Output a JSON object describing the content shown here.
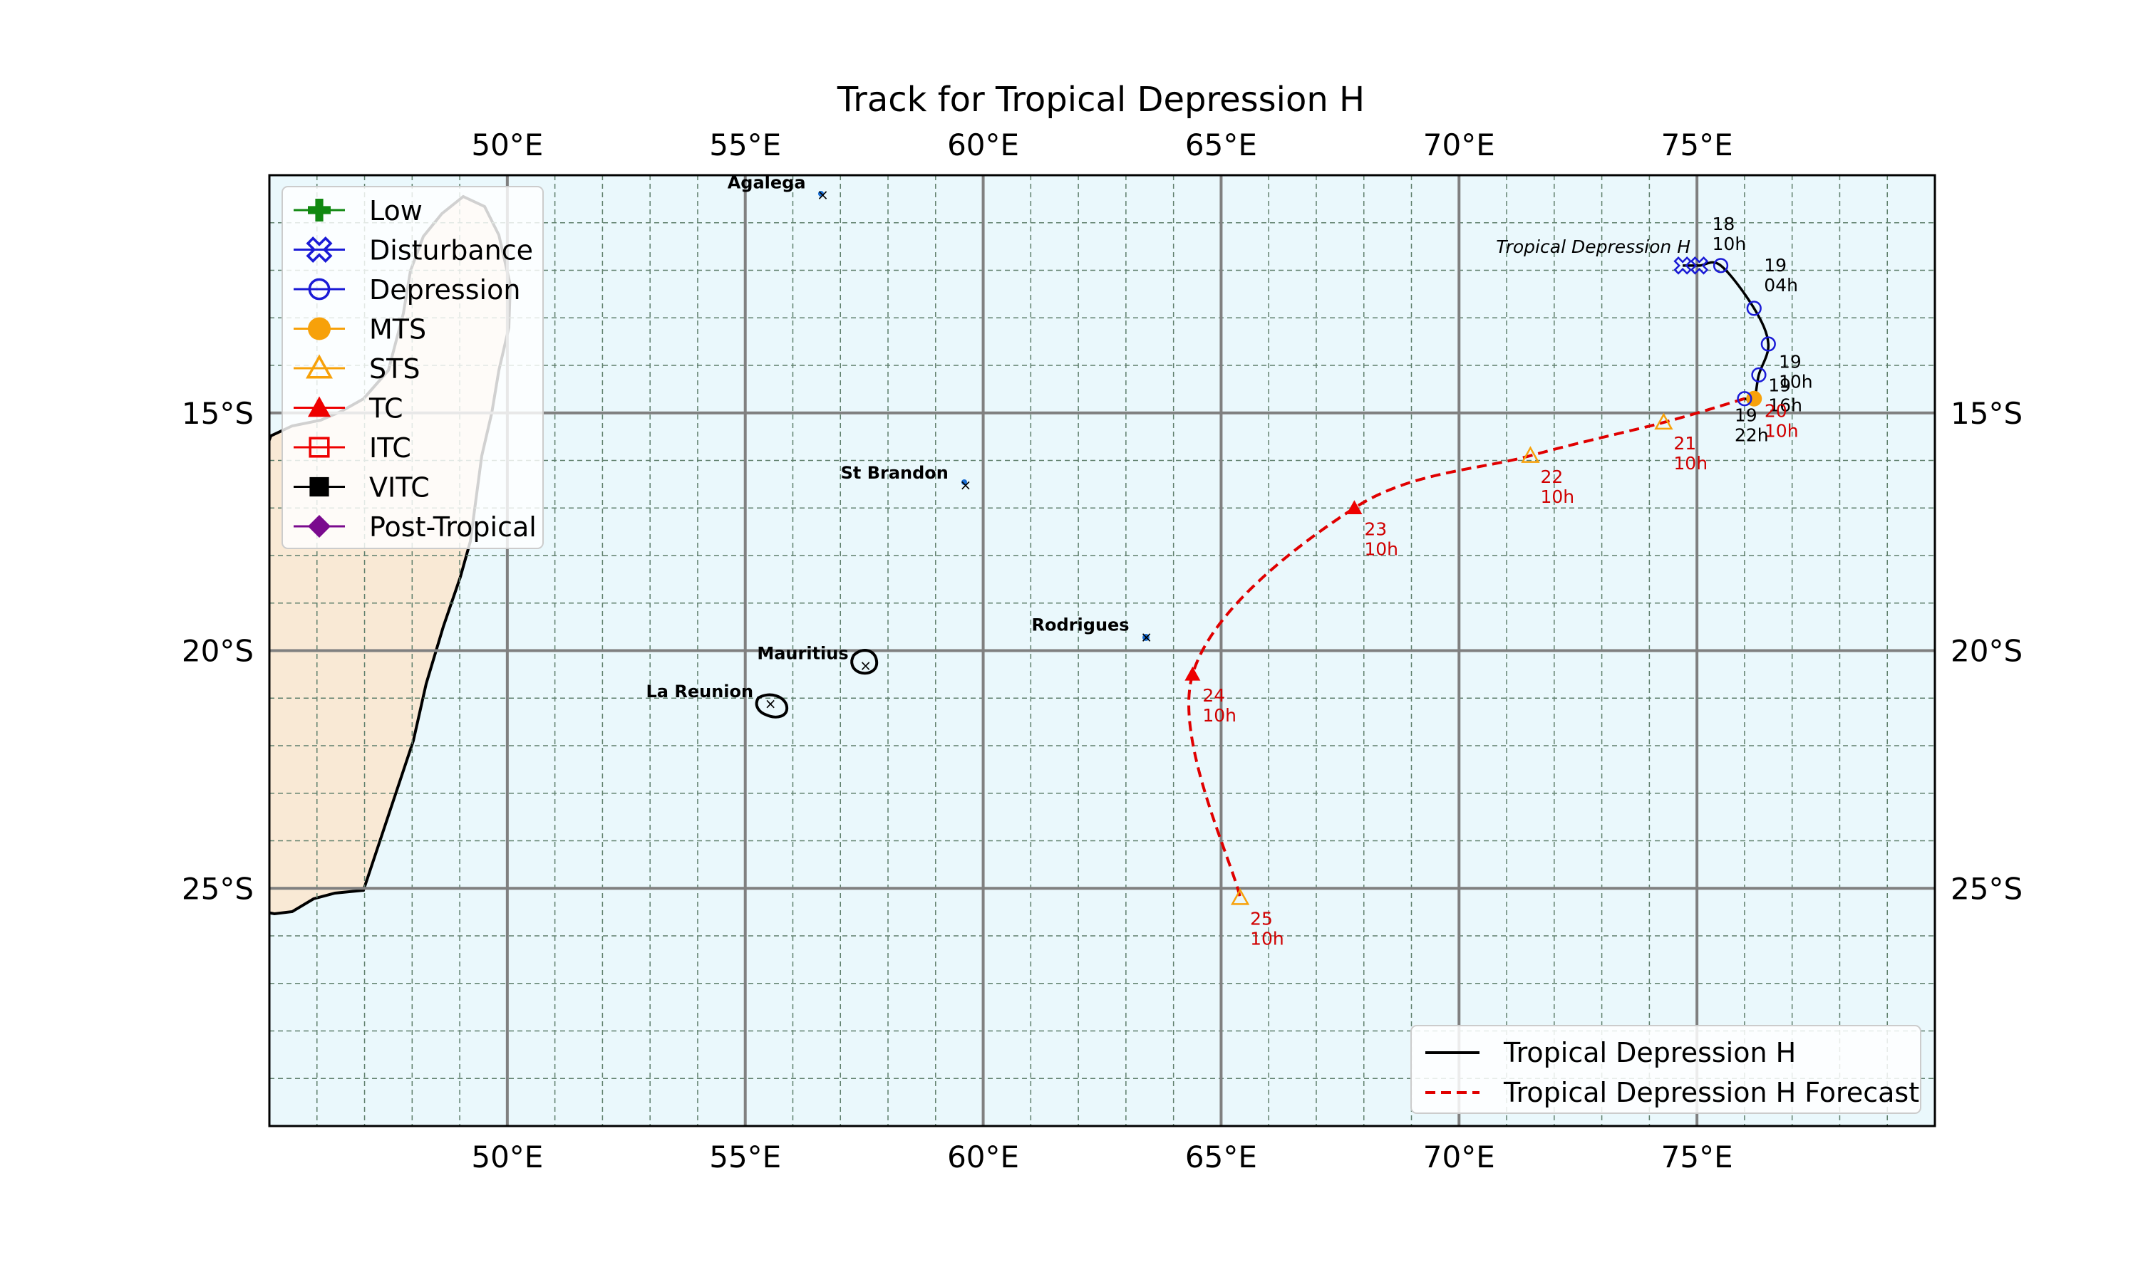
{
  "title": "Track for Tropical Depression H",
  "colors": {
    "ocean": "#eaf8fc",
    "land": "#f9e9d5",
    "grid_major": "#808080",
    "grid_minor": "#5f7f6c",
    "track_observed": "#000000",
    "track_forecast": "#e00000",
    "label_observed": "#000000",
    "label_forecast": "#d00000"
  },
  "map": {
    "lon_range": [
      45,
      80
    ],
    "lat_range": [
      -30,
      -10
    ],
    "lon_ticks": [
      {
        "value": 50,
        "label": "50°E"
      },
      {
        "value": 55,
        "label": "55°E"
      },
      {
        "value": 60,
        "label": "60°E"
      },
      {
        "value": 65,
        "label": "65°E"
      },
      {
        "value": 70,
        "label": "70°E"
      },
      {
        "value": 75,
        "label": "75°E"
      }
    ],
    "lat_ticks": [
      {
        "value": -15,
        "label": "15°S"
      },
      {
        "value": -20,
        "label": "20°S"
      },
      {
        "value": -25,
        "label": "25°S"
      }
    ],
    "grid_major": true,
    "grid_minor": true
  },
  "places": [
    {
      "name": "Agalega",
      "lon": 56.6,
      "lat": -10.4
    },
    {
      "name": "St Brandon",
      "lon": 59.6,
      "lat": -16.5
    },
    {
      "name": "Rodrigues",
      "lon": 63.4,
      "lat": -19.7
    },
    {
      "name": "Mauritius",
      "lon": 57.5,
      "lat": -20.3
    },
    {
      "name": "La Reunion",
      "lon": 55.5,
      "lat": -21.1
    }
  ],
  "legend_categories": {
    "items": [
      {
        "label": "Low",
        "color": "#118811",
        "marker": "plus"
      },
      {
        "label": "Disturbance",
        "color": "#1a1ad6",
        "marker": "x-open"
      },
      {
        "label": "Depression",
        "color": "#1a1ad6",
        "marker": "circle-open"
      },
      {
        "label": "MTS",
        "color": "#f7a10a",
        "marker": "circle"
      },
      {
        "label": "STS",
        "color": "#f7a10a",
        "marker": "triangle-open"
      },
      {
        "label": "TC",
        "color": "#ee0000",
        "marker": "triangle"
      },
      {
        "label": "ITC",
        "color": "#ee0000",
        "marker": "square-open"
      },
      {
        "label": "VITC",
        "color": "#000000",
        "marker": "square"
      },
      {
        "label": "Post-Tropical",
        "color": "#7a0a8e",
        "marker": "diamond"
      }
    ]
  },
  "legend_tracks": {
    "items": [
      {
        "label": "Tropical Depression H",
        "style": "solid",
        "color": "#000000"
      },
      {
        "label": "Tropical Depression H Forecast",
        "style": "dashed",
        "color": "#e00000"
      }
    ]
  },
  "storm_label": "Tropical Depression H",
  "chart_data": {
    "type": "map-track",
    "storm": "Tropical Depression H",
    "observed_track": [
      {
        "lon": 74.7,
        "lat": -11.9,
        "cat": "Disturbance"
      },
      {
        "lon": 75.05,
        "lat": -11.9,
        "cat": "Disturbance"
      },
      {
        "lon": 75.5,
        "lat": -11.9,
        "cat": "Depression",
        "label": [
          "18",
          "10h"
        ]
      },
      {
        "lon": 76.2,
        "lat": -12.8,
        "cat": "Depression",
        "label": [
          "19",
          "04h"
        ]
      },
      {
        "lon": 76.5,
        "lat": -13.55,
        "cat": "Depression"
      },
      {
        "lon": 76.3,
        "lat": -14.2,
        "cat": "Depression",
        "label": [
          "19",
          "10h"
        ]
      },
      {
        "lon": 76.2,
        "lat": -14.7,
        "cat": "MTS",
        "label": [
          "19",
          "16h"
        ]
      },
      {
        "lon": 76.0,
        "lat": -14.7,
        "cat": "Depression",
        "label": [
          "19",
          "22h"
        ]
      }
    ],
    "forecast_track": [
      {
        "lon": 76.0,
        "lat": -14.7,
        "cat": "Depression",
        "label": [
          "20",
          "10h"
        ]
      },
      {
        "lon": 74.3,
        "lat": -15.2,
        "cat": "STS",
        "label": [
          "21",
          "10h"
        ]
      },
      {
        "lon": 71.5,
        "lat": -15.9,
        "cat": "STS",
        "label": [
          "22",
          "10h"
        ]
      },
      {
        "lon": 67.8,
        "lat": -17.0,
        "cat": "TC",
        "label": [
          "23",
          "10h"
        ]
      },
      {
        "lon": 64.4,
        "lat": -20.5,
        "cat": "TC",
        "label": [
          "24",
          "10h"
        ]
      },
      {
        "lon": 65.4,
        "lat": -25.2,
        "cat": "STS",
        "label": [
          "25",
          "10h"
        ]
      }
    ]
  }
}
